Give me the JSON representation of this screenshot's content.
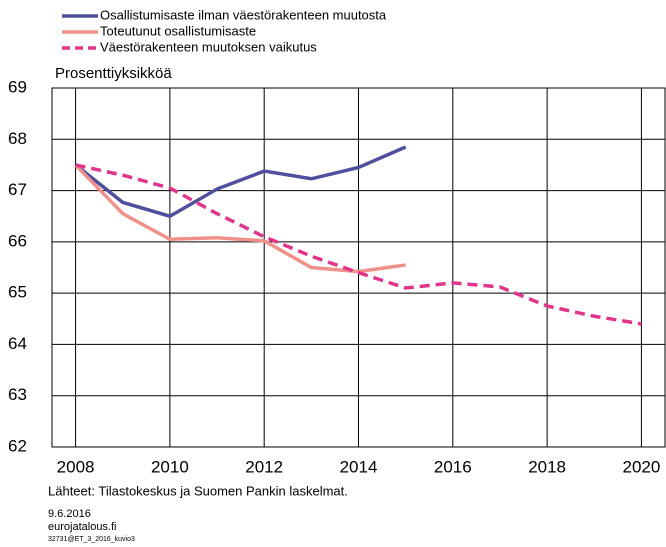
{
  "chart_data": {
    "type": "line",
    "y_label": "Prosenttiyksikköä",
    "x": [
      2008,
      2009,
      2010,
      2011,
      2012,
      2013,
      2014,
      2015,
      2016,
      2017,
      2018,
      2019,
      2020
    ],
    "series": [
      {
        "name": "Osallistumisaste ilman väestörakenteen muutosta",
        "color": "#4f4f9e",
        "dash": false,
        "values": [
          67.5,
          66.77,
          66.5,
          67.03,
          67.38,
          67.23,
          67.45,
          67.85,
          null,
          null,
          null,
          null,
          null
        ]
      },
      {
        "name": "Toteutunut osallistumisaste",
        "color": "#f0908a",
        "dash": false,
        "values": [
          67.5,
          66.55,
          66.05,
          66.08,
          66.02,
          65.5,
          65.42,
          65.55,
          null,
          null,
          null,
          null,
          null
        ]
      },
      {
        "name": "Väestörakenteen muutoksen vaikutus",
        "color": "#e0358a",
        "dash": true,
        "values": [
          67.5,
          67.3,
          67.05,
          66.55,
          66.1,
          65.72,
          65.4,
          65.1,
          65.2,
          65.12,
          64.75,
          64.55,
          64.4
        ]
      }
    ],
    "xlim": [
      2007.5,
      2020.5
    ],
    "xticks": [
      2008,
      2010,
      2012,
      2014,
      2016,
      2018,
      2020
    ],
    "ylim": [
      62,
      69
    ],
    "yticks": [
      62,
      63,
      64,
      65,
      66,
      67,
      68,
      69
    ],
    "grid": true,
    "source": "Lähteet: Tilastokeskus ja Suomen Pankin laskelmat.",
    "date": "9.6.2016",
    "site": "eurojatalous.fi",
    "code": "32731@ET_3_2016_kuvio3"
  }
}
